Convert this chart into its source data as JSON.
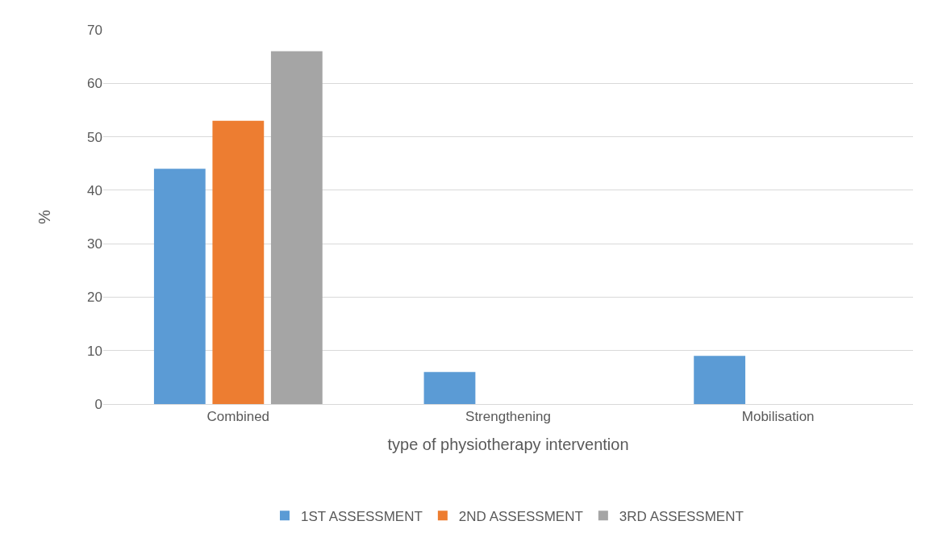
{
  "chart_data": {
    "type": "bar",
    "xlabel": "type of physiotherapy intervention",
    "ylabel": "%",
    "categories": [
      "Combined",
      "Strengthening",
      "Mobilisation"
    ],
    "series": [
      {
        "name": "1ST ASSESSMENT",
        "color": "#5b9bd5",
        "values": [
          44,
          6,
          9
        ]
      },
      {
        "name": "2ND ASSESSMENT",
        "color": "#ed7d31",
        "values": [
          53,
          null,
          null
        ]
      },
      {
        "name": "3RD ASSESSMENT",
        "color": "#a5a5a5",
        "values": [
          66,
          null,
          null
        ]
      }
    ],
    "ylim": [
      0,
      70
    ],
    "yticks": [
      0,
      10,
      20,
      30,
      40,
      50,
      60,
      70
    ],
    "grid": "y",
    "legend": "bottom"
  }
}
